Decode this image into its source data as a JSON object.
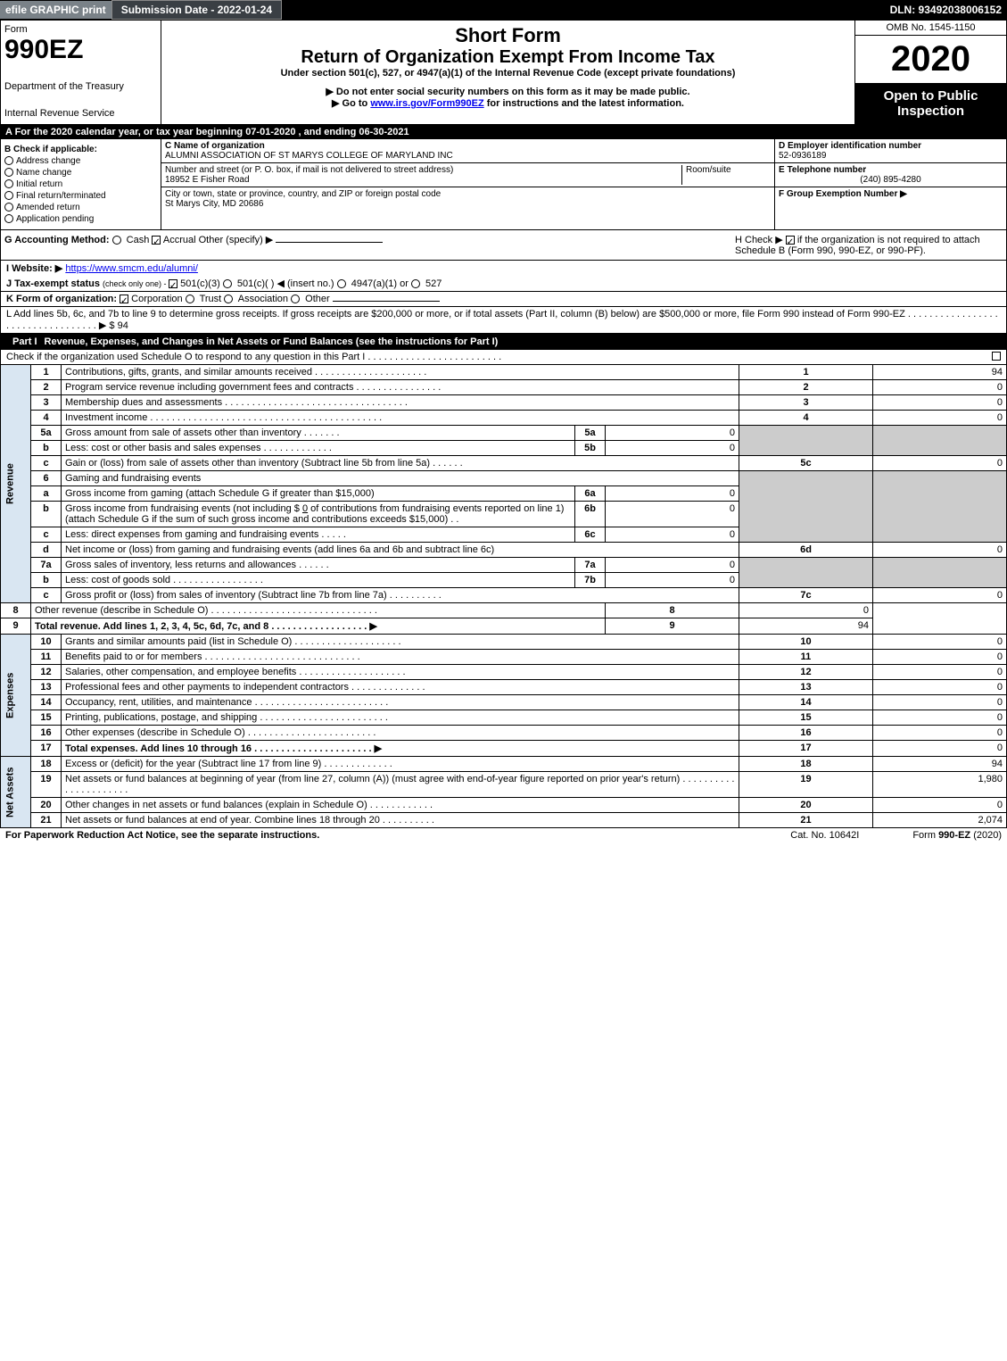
{
  "topbar": {
    "efile": "efile GRAPHIC print",
    "submission": "Submission Date - 2022-01-24",
    "dln": "DLN: 93492038006152"
  },
  "header": {
    "form_label": "Form",
    "form_no": "990EZ",
    "dept1": "Department of the Treasury",
    "dept2": "Internal Revenue Service",
    "short_form": "Short Form",
    "return_title": "Return of Organization Exempt From Income Tax",
    "under": "Under section 501(c), 527, or 4947(a)(1) of the Internal Revenue Code (except private foundations)",
    "warn": "▶ Do not enter social security numbers on this form as it may be made public.",
    "goto_pre": "▶ Go to ",
    "goto_link": "www.irs.gov/Form990EZ",
    "goto_post": " for instructions and the latest information.",
    "omb": "OMB No. 1545-1150",
    "year": "2020",
    "open": "Open to Public Inspection"
  },
  "row_a": "A  For the 2020 calendar year, or tax year beginning 07-01-2020 , and ending 06-30-2021",
  "section_b": {
    "title": "B  Check if applicable:",
    "items": [
      "Address change",
      "Name change",
      "Initial return",
      "Final return/terminated",
      "Amended return",
      "Application pending"
    ]
  },
  "section_c": {
    "c_label": "C Name of organization",
    "c_name": "ALUMNI ASSOCIATION OF ST MARYS COLLEGE OF MARYLAND INC",
    "addr_label": "Number and street (or P. O. box, if mail is not delivered to street address)",
    "addr": "18952 E Fisher Road",
    "room_label": "Room/suite",
    "city_label": "City or town, state or province, country, and ZIP or foreign postal code",
    "city": "St Marys City, MD  20686"
  },
  "section_d": {
    "d_label": "D Employer identification number",
    "d_val": "52-0936189",
    "e_label": "E Telephone number",
    "e_val": "(240) 895-4280",
    "f_label": "F Group Exemption Number  ▶"
  },
  "section_gh": {
    "g": "G Accounting Method:",
    "g_cash": "Cash",
    "g_accrual": "Accrual",
    "g_other": "Other (specify) ▶",
    "h_pre": "H  Check ▶ ",
    "h_post": " if the organization is not required to attach Schedule B (Form 990, 990-EZ, or 990-PF).",
    "i_label": "I Website: ▶",
    "i_val": "https://www.smcm.edu/alumni/",
    "j_label": "J Tax-exempt status",
    "j_sub": " (check only one) - ",
    "j_501c3": "501(c)(3)",
    "j_501c": "501(c)(  ) ◀ (insert no.)",
    "j_4947": "4947(a)(1) or",
    "j_527": "527",
    "k_label": "K Form of organization:",
    "k_corp": "Corporation",
    "k_trust": "Trust",
    "k_assoc": "Association",
    "k_other": "Other",
    "l_text": "L Add lines 5b, 6c, and 7b to line 9 to determine gross receipts. If gross receipts are $200,000 or more, or if total assets (Part II, column (B) below) are $500,000 or more, file Form 990 instead of Form 990-EZ . . . . . . . . . . . . . . . . . . . . . . . . . . . . . . . . . . ▶ $ 94"
  },
  "part1": {
    "label": "Part I",
    "title": "Revenue, Expenses, and Changes in Net Assets or Fund Balances (see the instructions for Part I)",
    "check": "Check if the organization used Schedule O to respond to any question in this Part I . . . . . . . . . . . . . . . . . . . . . . . . .",
    "revenue_label": "Revenue",
    "expenses_label": "Expenses",
    "netassets_label": "Net Assets",
    "rows": [
      {
        "n": "1",
        "t": "Contributions, gifts, grants, and similar amounts received . . . . . . . . . . . . . . . . . . . . .",
        "rn": "1",
        "amt": "94"
      },
      {
        "n": "2",
        "t": "Program service revenue including government fees and contracts . . . . . . . . . . . . . . . .",
        "rn": "2",
        "amt": "0"
      },
      {
        "n": "3",
        "t": "Membership dues and assessments . . . . . . . . . . . . . . . . . . . . . . . . . . . . . . . . . .",
        "rn": "3",
        "amt": "0"
      },
      {
        "n": "4",
        "t": "Investment income . . . . . . . . . . . . . . . . . . . . . . . . . . . . . . . . . . . . . . . . . . .",
        "rn": "4",
        "amt": "0"
      }
    ],
    "row5a": {
      "n": "5a",
      "t": "Gross amount from sale of assets other than inventory . . . . . . .",
      "sn": "5a",
      "samt": "0"
    },
    "row5b": {
      "n": "b",
      "t": "Less: cost or other basis and sales expenses . . . . . . . . . . . . .",
      "sn": "5b",
      "samt": "0"
    },
    "row5c": {
      "n": "c",
      "t": "Gain or (loss) from sale of assets other than inventory (Subtract line 5b from line 5a) . . . . . .",
      "rn": "5c",
      "amt": "0"
    },
    "row6": {
      "n": "6",
      "t": "Gaming and fundraising events"
    },
    "row6a": {
      "n": "a",
      "t": "Gross income from gaming (attach Schedule G if greater than $15,000)",
      "sn": "6a",
      "samt": "0"
    },
    "row6b": {
      "n": "b",
      "t1": "Gross income from fundraising events (not including $",
      "t1v": "0",
      "t1post": " of contributions from fundraising events reported on line 1) (attach Schedule G if the sum of such gross income and contributions exceeds $15,000)  . .",
      "sn": "6b",
      "samt": "0"
    },
    "row6c": {
      "n": "c",
      "t": "Less: direct expenses from gaming and fundraising events  . . . . .",
      "sn": "6c",
      "samt": "0"
    },
    "row6d": {
      "n": "d",
      "t": "Net income or (loss) from gaming and fundraising events (add lines 6a and 6b and subtract line 6c)",
      "rn": "6d",
      "amt": "0"
    },
    "row7a": {
      "n": "7a",
      "t": "Gross sales of inventory, less returns and allowances . . . . . .",
      "sn": "7a",
      "samt": "0"
    },
    "row7b": {
      "n": "b",
      "t": "Less: cost of goods sold  . . . . . . . . . . . . . . . . .",
      "sn": "7b",
      "samt": "0"
    },
    "row7c": {
      "n": "c",
      "t": "Gross profit or (loss) from sales of inventory (Subtract line 7b from line 7a)  . . . . . . . . . .",
      "rn": "7c",
      "amt": "0"
    },
    "row8": {
      "n": "8",
      "t": "Other revenue (describe in Schedule O) . . . . . . . . . . . . . . . . . . . . . . . . . . . . . . .",
      "rn": "8",
      "amt": "0"
    },
    "row9": {
      "n": "9",
      "t": "Total revenue. Add lines 1, 2, 3, 4, 5c, 6d, 7c, and 8 . . . . . . . . . . . . . . . . . . ▶",
      "rn": "9",
      "amt": "94"
    },
    "exp_rows": [
      {
        "n": "10",
        "t": "Grants and similar amounts paid (list in Schedule O) . . . . . . . . . . . . . . . . . . . .",
        "rn": "10",
        "amt": "0"
      },
      {
        "n": "11",
        "t": "Benefits paid to or for members  . . . . . . . . . . . . . . . . . . . . . . . . . . . . .",
        "rn": "11",
        "amt": "0"
      },
      {
        "n": "12",
        "t": "Salaries, other compensation, and employee benefits . . . . . . . . . . . . . . . . . . . .",
        "rn": "12",
        "amt": "0"
      },
      {
        "n": "13",
        "t": "Professional fees and other payments to independent contractors . . . . . . . . . . . . . .",
        "rn": "13",
        "amt": "0"
      },
      {
        "n": "14",
        "t": "Occupancy, rent, utilities, and maintenance . . . . . . . . . . . . . . . . . . . . . . . . .",
        "rn": "14",
        "amt": "0"
      },
      {
        "n": "15",
        "t": "Printing, publications, postage, and shipping . . . . . . . . . . . . . . . . . . . . . . . .",
        "rn": "15",
        "amt": "0"
      },
      {
        "n": "16",
        "t": "Other expenses (describe in Schedule O)  . . . . . . . . . . . . . . . . . . . . . . . .",
        "rn": "16",
        "amt": "0"
      },
      {
        "n": "17",
        "t": "Total expenses. Add lines 10 through 16  . . . . . . . . . . . . . . . . . . . . . . ▶",
        "rn": "17",
        "amt": "0"
      }
    ],
    "na_rows": [
      {
        "n": "18",
        "t": "Excess or (deficit) for the year (Subtract line 17 from line 9)  . . . . . . . . . . . . .",
        "rn": "18",
        "amt": "94"
      },
      {
        "n": "19",
        "t": "Net assets or fund balances at beginning of year (from line 27, column (A)) (must agree with end-of-year figure reported on prior year's return) . . . . . . . . . . . . . . . . . . . . . .",
        "rn": "19",
        "amt": "1,980"
      },
      {
        "n": "20",
        "t": "Other changes in net assets or fund balances (explain in Schedule O) . . . . . . . . . . . .",
        "rn": "20",
        "amt": "0"
      },
      {
        "n": "21",
        "t": "Net assets or fund balances at end of year. Combine lines 18 through 20 . . . . . . . . . .",
        "rn": "21",
        "amt": "2,074"
      }
    ]
  },
  "footer": {
    "left": "For Paperwork Reduction Act Notice, see the separate instructions.",
    "mid": "Cat. No. 10642I",
    "right_pre": "Form ",
    "right_form": "990-EZ",
    "right_post": " (2020)"
  },
  "colors": {
    "topbar_bg": "#000000",
    "topbar_efile_bg": "#7a8288",
    "topbar_sub_bg": "#3a3f44",
    "vert_bg": "#d9e6f2",
    "shade": "#cccccc",
    "link": "#0000ee"
  }
}
